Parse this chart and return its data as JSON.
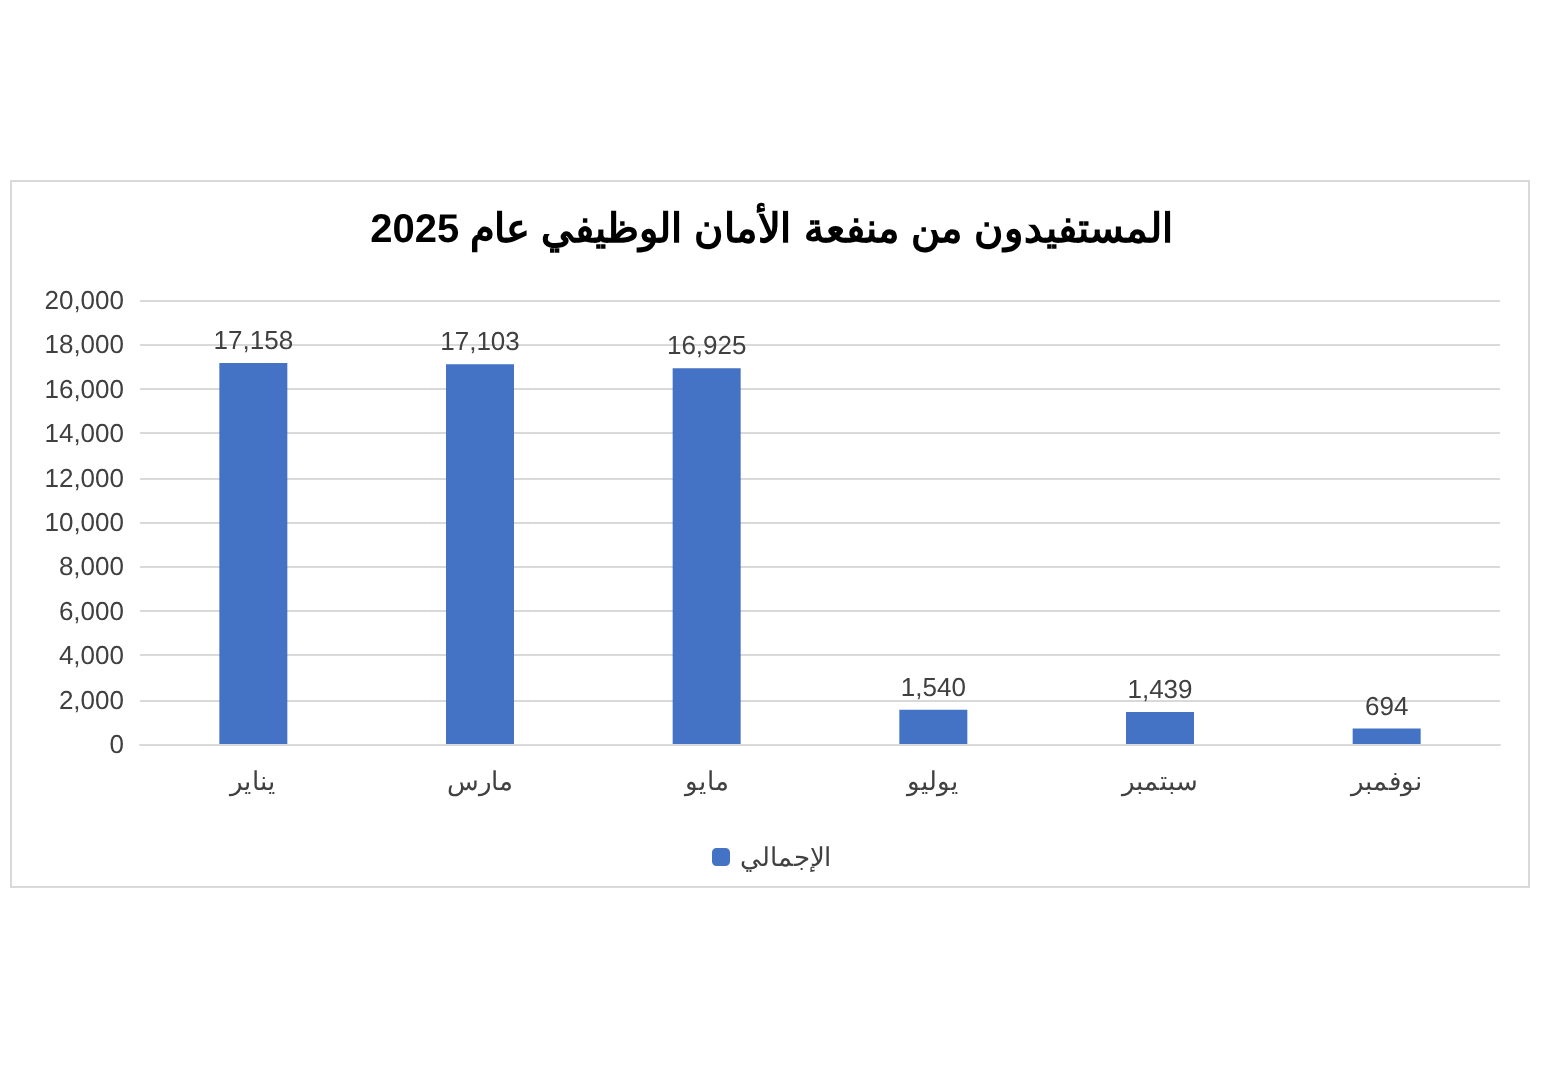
{
  "chart_data": {
    "type": "bar",
    "title": "المستفيدون من منفعة الأمان الوظيفي عام 2025",
    "categories": [
      "يناير",
      "مارس",
      "مايو",
      "يوليو",
      "سبتمبر",
      "نوفمبر"
    ],
    "series": [
      {
        "name": "الإجمالي",
        "color": "#4472c4",
        "values": [
          17158,
          17103,
          16925,
          1540,
          1439,
          694
        ]
      }
    ],
    "value_labels": [
      "17,158",
      "17,103",
      "16,925",
      "1,540",
      "1,439",
      "694"
    ],
    "ylim": [
      0,
      20000
    ],
    "yticks": [
      0,
      {
        "value": 2000,
        "label": "2,000"
      },
      {
        "value": 4000,
        "label": "4,000"
      },
      {
        "value": 6000,
        "label": "6,000"
      },
      {
        "value": 8000,
        "label": "8,000"
      },
      {
        "value": 10000,
        "label": "10,000"
      },
      {
        "value": 12000,
        "label": "12,000"
      },
      {
        "value": 14000,
        "label": "14,000"
      },
      {
        "value": 16000,
        "label": "16,000"
      },
      {
        "value": 18000,
        "label": "18,000"
      },
      {
        "value": 20000,
        "label": "20,000"
      }
    ],
    "grid": "y",
    "legend": "bottom"
  }
}
